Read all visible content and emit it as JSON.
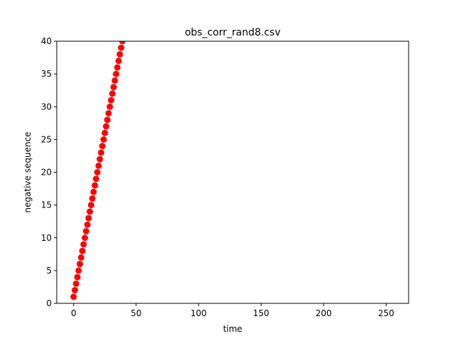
{
  "chart_data": {
    "type": "scatter",
    "title": "obs_corr_rand8.csv",
    "xlabel": "time",
    "ylabel": "negative sequence",
    "xlim": [
      -13.5,
      268
    ],
    "ylim": [
      0,
      40
    ],
    "xticks": [
      0,
      50,
      100,
      150,
      200,
      250
    ],
    "yticks": [
      0,
      5,
      10,
      15,
      20,
      25,
      30,
      35,
      40
    ],
    "grid": false,
    "marker_color": "#ff0000",
    "series": [
      {
        "x": [
          0,
          1,
          2,
          3,
          4,
          5,
          6,
          7,
          8,
          9,
          10,
          11,
          12,
          13,
          14,
          15,
          16,
          17,
          18,
          19,
          20,
          21,
          22,
          23,
          24,
          25,
          26,
          27,
          28,
          29,
          30,
          31,
          32,
          33,
          34,
          35,
          36,
          37,
          38,
          39,
          40
        ],
        "y": [
          1,
          2,
          3,
          4,
          5,
          6,
          7,
          8,
          9,
          10,
          11,
          12,
          13,
          14,
          15,
          16,
          17,
          18,
          19,
          20,
          21,
          22,
          23,
          24,
          25,
          26,
          27,
          28,
          29,
          30,
          31,
          32,
          33,
          34,
          35,
          36,
          37,
          38,
          39,
          40,
          41
        ]
      }
    ]
  }
}
